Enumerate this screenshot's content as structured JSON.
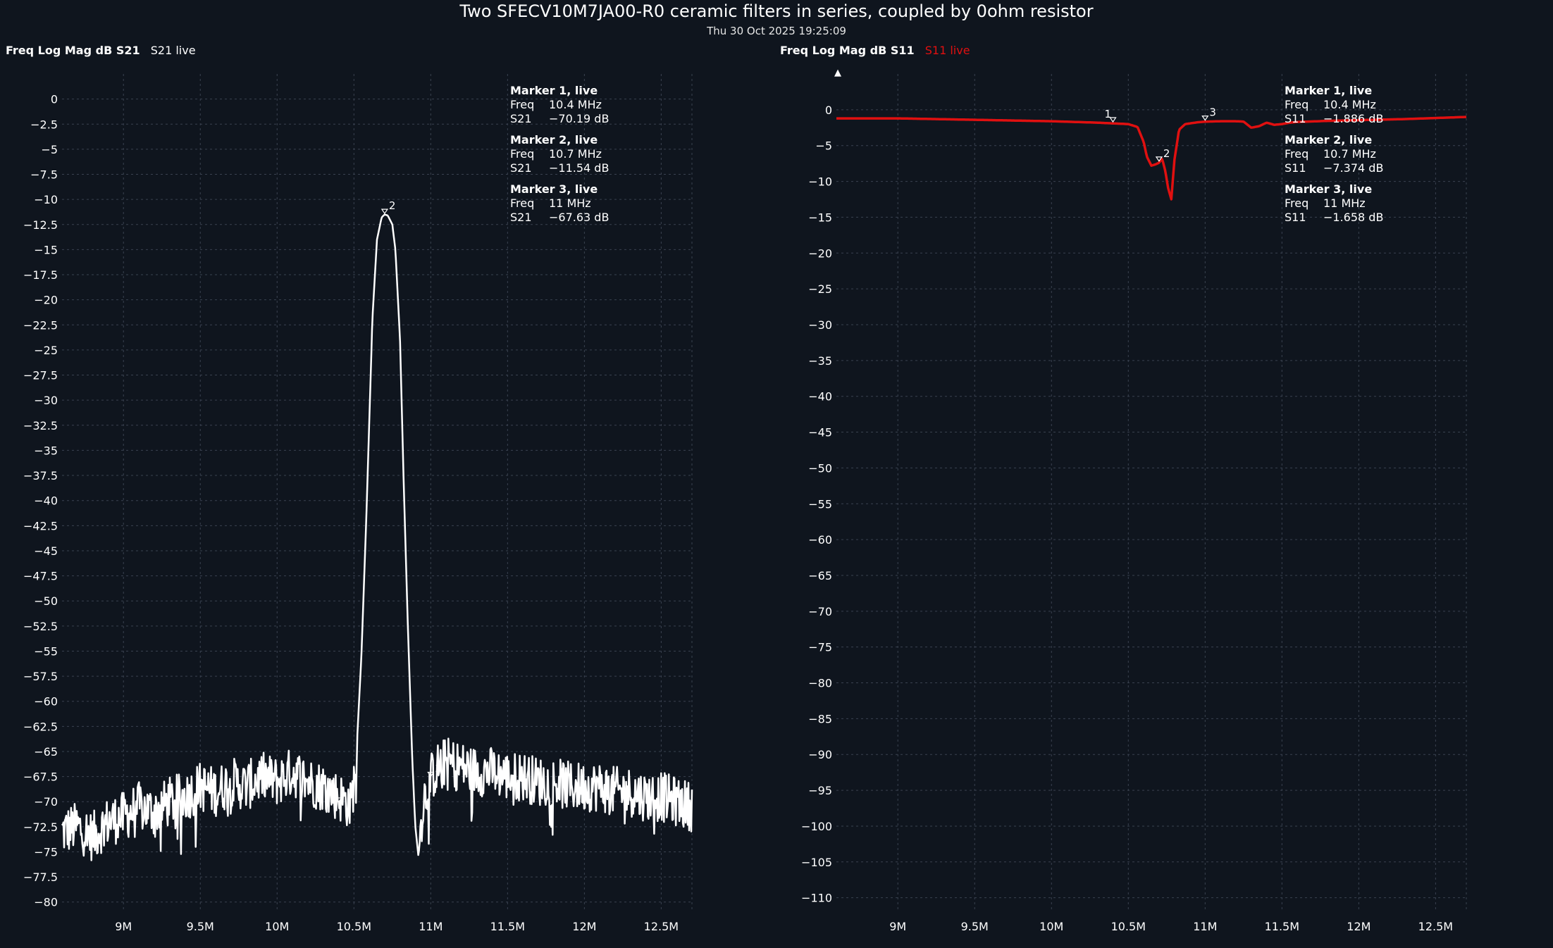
{
  "title": "Two SFECV10M7JA00-R0 ceramic filters in series, coupled by 0ohm resistor",
  "subtitle": "Thu 30 Oct 2025 19:25:09",
  "colors": {
    "background": "#0f151e",
    "grid": "#3a4250",
    "text": "#ffffff",
    "s21_trace": "#ffffff",
    "s11_trace": "#e01010"
  },
  "chart_data": [
    {
      "type": "line",
      "header_format": "Freq Log Mag dB S21",
      "header_trace": "S21 live",
      "x_unit": "Hz",
      "xlim": [
        8600000,
        12700000
      ],
      "ylim": [
        -81,
        2.5
      ],
      "x_ticks": [
        {
          "value": 9000000,
          "label": "9M"
        },
        {
          "value": 9500000,
          "label": "9.5M"
        },
        {
          "value": 10000000,
          "label": "10M"
        },
        {
          "value": 10500000,
          "label": "10.5M"
        },
        {
          "value": 11000000,
          "label": "11M"
        },
        {
          "value": 11500000,
          "label": "11.5M"
        },
        {
          "value": 12000000,
          "label": "12M"
        },
        {
          "value": 12500000,
          "label": "12.5M"
        }
      ],
      "y_ticks": [
        {
          "value": 0,
          "label": "0"
        },
        {
          "value": -2.5,
          "label": "−2.5"
        },
        {
          "value": -5,
          "label": "−5"
        },
        {
          "value": -7.5,
          "label": "−7.5"
        },
        {
          "value": -10,
          "label": "−10"
        },
        {
          "value": -12.5,
          "label": "−12.5"
        },
        {
          "value": -15,
          "label": "−15"
        },
        {
          "value": -17.5,
          "label": "−17.5"
        },
        {
          "value": -20,
          "label": "−20"
        },
        {
          "value": -22.5,
          "label": "−22.5"
        },
        {
          "value": -25,
          "label": "−25"
        },
        {
          "value": -27.5,
          "label": "−27.5"
        },
        {
          "value": -30,
          "label": "−30"
        },
        {
          "value": -32.5,
          "label": "−32.5"
        },
        {
          "value": -35,
          "label": "−35"
        },
        {
          "value": -37.5,
          "label": "−37.5"
        },
        {
          "value": -40,
          "label": "−40"
        },
        {
          "value": -42.5,
          "label": "−42.5"
        },
        {
          "value": -45,
          "label": "−45"
        },
        {
          "value": -47.5,
          "label": "−47.5"
        },
        {
          "value": -50,
          "label": "−50"
        },
        {
          "value": -52.5,
          "label": "−52.5"
        },
        {
          "value": -55,
          "label": "−55"
        },
        {
          "value": -57.5,
          "label": "−57.5"
        },
        {
          "value": -60,
          "label": "−60"
        },
        {
          "value": -62.5,
          "label": "−62.5"
        },
        {
          "value": -65,
          "label": "−65"
        },
        {
          "value": -67.5,
          "label": "−67.5"
        },
        {
          "value": -70,
          "label": "−70"
        },
        {
          "value": -72.5,
          "label": "−72.5"
        },
        {
          "value": -75,
          "label": "−75"
        },
        {
          "value": -77.5,
          "label": "−77.5"
        },
        {
          "value": -80,
          "label": "−80"
        }
      ],
      "grid": true,
      "series": [
        {
          "name": "S21 live",
          "color": "#ffffff",
          "x": [
            8600000,
            8700000,
            8800000,
            8900000,
            9000000,
            9100000,
            9200000,
            9300000,
            9400000,
            9500000,
            9600000,
            9700000,
            9800000,
            9900000,
            10000000,
            10100000,
            10200000,
            10300000,
            10400000,
            10450000,
            10480000,
            10500000,
            10520000,
            10550000,
            10580000,
            10600000,
            10620000,
            10650000,
            10680000,
            10700000,
            10720000,
            10750000,
            10770000,
            10800000,
            10820000,
            10850000,
            10880000,
            10900000,
            10920000,
            10950000,
            10970000,
            11000000,
            11050000,
            11100000,
            11200000,
            11300000,
            11400000,
            11500000,
            11600000,
            11700000,
            11800000,
            11900000,
            12000000,
            12100000,
            12200000,
            12300000,
            12400000,
            12500000,
            12600000,
            12700000
          ],
          "y": [
            -73,
            -72.5,
            -73.5,
            -72,
            -71.5,
            -70.5,
            -71,
            -70,
            -69.5,
            -68.5,
            -69,
            -68,
            -68.5,
            -67.5,
            -68,
            -67,
            -68,
            -68.5,
            -69.5,
            -70,
            -70.5,
            -68,
            -64,
            -55,
            -42,
            -32,
            -22,
            -14,
            -11.8,
            -11.5,
            -11.6,
            -12.5,
            -15,
            -24,
            -36,
            -52,
            -66,
            -72.5,
            -75.5,
            -70,
            -69,
            -67.6,
            -66.5,
            -66,
            -66.5,
            -67,
            -67,
            -67.5,
            -67.5,
            -68,
            -68,
            -68.5,
            -68.5,
            -68.5,
            -69,
            -69,
            -69.5,
            -69.5,
            -70,
            -70.5
          ]
        }
      ],
      "noise_amplitude_db": 2.5,
      "markers": [
        {
          "id": "1",
          "freq": 10400000,
          "value": -70.19,
          "title": "Marker 1, live",
          "freq_label": "Freq",
          "freq_value": "10.4 MHz",
          "param_label": "S21",
          "param_value": "−70.19 dB"
        },
        {
          "id": "2",
          "freq": 10700000,
          "value": -11.54,
          "title": "Marker 2, live",
          "freq_label": "Freq",
          "freq_value": "10.7 MHz",
          "param_label": "S21",
          "param_value": "−11.54 dB"
        },
        {
          "id": "3",
          "freq": 11000000,
          "value": -67.63,
          "title": "Marker 3, live",
          "freq_label": "Freq",
          "freq_value": "11 MHz",
          "param_label": "S21",
          "param_value": "−67.63 dB"
        }
      ]
    },
    {
      "type": "line",
      "header_format": "Freq Log Mag dB S11",
      "header_trace": "S11 live",
      "x_unit": "Hz",
      "xlim": [
        8600000,
        12700000
      ],
      "ylim": [
        -112,
        5
      ],
      "reference_marker": "▲",
      "x_ticks": [
        {
          "value": 9000000,
          "label": "9M"
        },
        {
          "value": 9500000,
          "label": "9.5M"
        },
        {
          "value": 10000000,
          "label": "10M"
        },
        {
          "value": 10500000,
          "label": "10.5M"
        },
        {
          "value": 11000000,
          "label": "11M"
        },
        {
          "value": 11500000,
          "label": "11.5M"
        },
        {
          "value": 12000000,
          "label": "12M"
        },
        {
          "value": 12500000,
          "label": "12.5M"
        }
      ],
      "y_ticks": [
        {
          "value": 0,
          "label": "0"
        },
        {
          "value": -5,
          "label": "−5"
        },
        {
          "value": -10,
          "label": "−10"
        },
        {
          "value": -15,
          "label": "−15"
        },
        {
          "value": -20,
          "label": "−20"
        },
        {
          "value": -25,
          "label": "−25"
        },
        {
          "value": -30,
          "label": "−30"
        },
        {
          "value": -35,
          "label": "−35"
        },
        {
          "value": -40,
          "label": "−40"
        },
        {
          "value": -45,
          "label": "−45"
        },
        {
          "value": -50,
          "label": "−50"
        },
        {
          "value": -55,
          "label": "−55"
        },
        {
          "value": -60,
          "label": "−60"
        },
        {
          "value": -65,
          "label": "−65"
        },
        {
          "value": -70,
          "label": "−70"
        },
        {
          "value": -75,
          "label": "−75"
        },
        {
          "value": -80,
          "label": "−80"
        },
        {
          "value": -85,
          "label": "−85"
        },
        {
          "value": -90,
          "label": "−90"
        },
        {
          "value": -95,
          "label": "−95"
        },
        {
          "value": -100,
          "label": "−100"
        },
        {
          "value": -105,
          "label": "−105"
        },
        {
          "value": -110,
          "label": "−110"
        }
      ],
      "grid": true,
      "series": [
        {
          "name": "S11 live",
          "color": "#e01010",
          "x": [
            8600000,
            9000000,
            9500000,
            10000000,
            10300000,
            10400000,
            10500000,
            10560000,
            10600000,
            10620000,
            10650000,
            10680000,
            10700000,
            10720000,
            10740000,
            10760000,
            10780000,
            10800000,
            10830000,
            10870000,
            10950000,
            11000000,
            11100000,
            11200000,
            11250000,
            11300000,
            11350000,
            11400000,
            11450000,
            11500000,
            11550000,
            11600000,
            11800000,
            12000000,
            12300000,
            12700000
          ],
          "y": [
            -1.2,
            -1.2,
            -1.4,
            -1.6,
            -1.8,
            -1.9,
            -2.0,
            -2.4,
            -4.5,
            -6.5,
            -7.8,
            -7.6,
            -7.4,
            -6.8,
            -8.5,
            -11.0,
            -12.5,
            -7.0,
            -2.8,
            -2.0,
            -1.75,
            -1.66,
            -1.6,
            -1.6,
            -1.65,
            -2.5,
            -2.3,
            -1.8,
            -2.1,
            -2.0,
            -1.8,
            -1.7,
            -1.55,
            -1.45,
            -1.3,
            -1.0
          ]
        }
      ],
      "markers": [
        {
          "id": "1",
          "freq": 10400000,
          "value": -1.886,
          "title": "Marker 1, live",
          "freq_label": "Freq",
          "freq_value": "10.4 MHz",
          "param_label": "S11",
          "param_value": "−1.886 dB"
        },
        {
          "id": "2",
          "freq": 10700000,
          "value": -7.374,
          "title": "Marker 2, live",
          "freq_label": "Freq",
          "freq_value": "10.7 MHz",
          "param_label": "S11",
          "param_value": "−7.374 dB"
        },
        {
          "id": "3",
          "freq": 11000000,
          "value": -1.658,
          "title": "Marker 3, live",
          "freq_label": "Freq",
          "freq_value": "11 MHz",
          "param_label": "S11",
          "param_value": "−1.658 dB"
        }
      ]
    }
  ]
}
